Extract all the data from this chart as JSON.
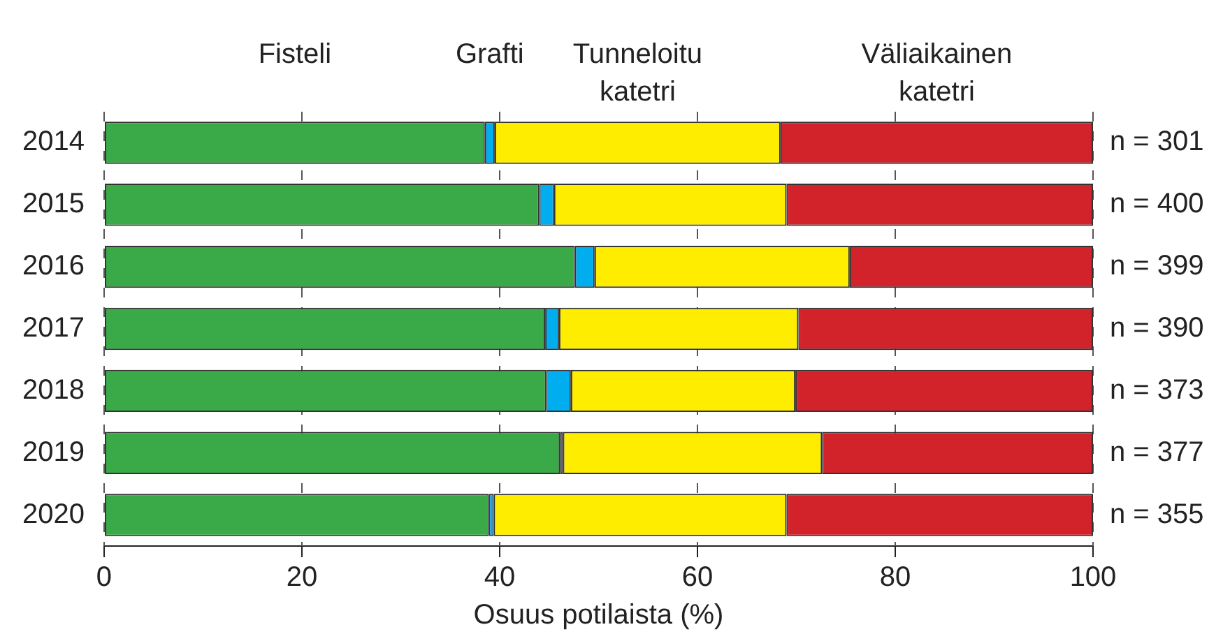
{
  "chart_data": {
    "type": "bar",
    "orientation": "horizontal",
    "stacked": true,
    "xlabel": "Osuus potilaista (%)",
    "categories": [
      "2014",
      "2015",
      "2016",
      "2017",
      "2018",
      "2019",
      "2020"
    ],
    "series": [
      {
        "name": "Fisteli",
        "color": "#3aaa48",
        "values": [
          38.5,
          44.0,
          47.6,
          44.6,
          44.7,
          46.1,
          38.9
        ]
      },
      {
        "name": "Grafti",
        "color": "#00aeef",
        "values": [
          1.0,
          1.5,
          2.0,
          1.4,
          2.5,
          0.3,
          0.5
        ]
      },
      {
        "name": "Tunneloitu katetri",
        "color": "#ffed00",
        "values": [
          28.9,
          23.5,
          25.8,
          24.2,
          22.7,
          26.2,
          29.6
        ]
      },
      {
        "name": "Väliaikainen katetri",
        "color": "#d2232a",
        "values": [
          31.6,
          31.0,
          24.6,
          29.8,
          30.1,
          27.4,
          31.0
        ]
      }
    ],
    "xlim": [
      0,
      100
    ],
    "xticks": [
      0,
      20,
      40,
      60,
      80,
      100
    ],
    "grid": "x",
    "legend": "top",
    "annotations": [
      "n = 301",
      "n = 400",
      "n = 399",
      "n = 390",
      "n = 373",
      "n = 377",
      "n = 355"
    ]
  }
}
